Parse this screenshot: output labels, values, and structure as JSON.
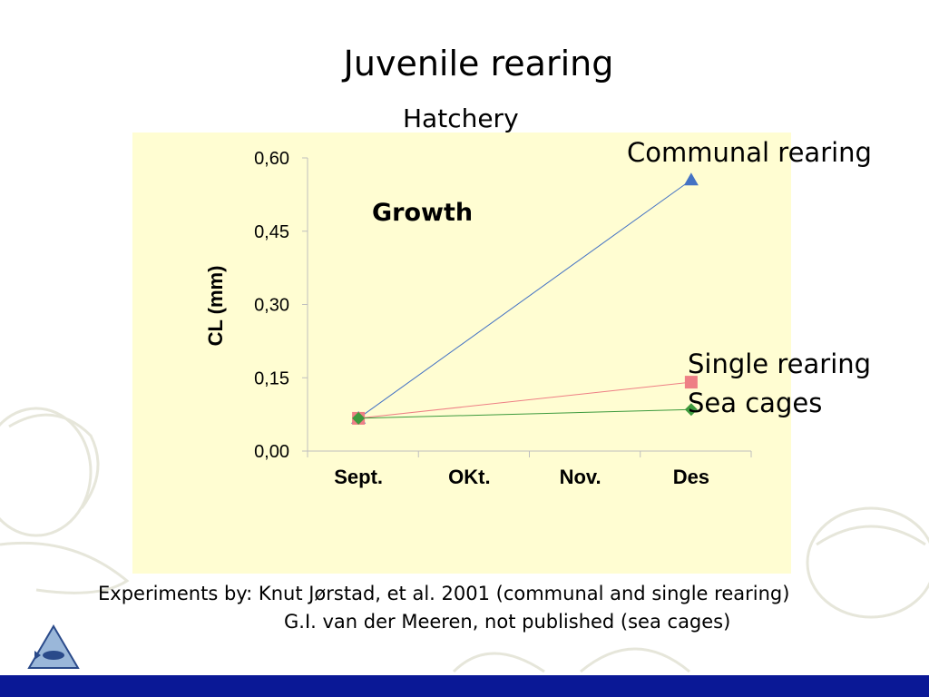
{
  "slide": {
    "title": "Juvenile rearing",
    "subtitle": "Hatchery",
    "credit_line1": "Experiments by: Knut Jørstad, et al. 2001 (communal and single rearing)",
    "credit_line2": "G.I. van der Meeren, not published (sea cages)",
    "panel_color": "#fffdd2",
    "bar_color": "#0a1896"
  },
  "chart_data": {
    "type": "line",
    "title": "Growth",
    "ylabel": "CL (mm)",
    "xlabel": "",
    "categories": [
      "Sept.",
      "OKt.",
      "Nov.",
      "Des"
    ],
    "ylim": [
      0,
      0.6
    ],
    "yticks": [
      "0,00",
      "0,15",
      "0,30",
      "0,45",
      "0,60"
    ],
    "ytick_values": [
      0,
      0.15,
      0.3,
      0.45,
      0.6
    ],
    "grid": false,
    "series": [
      {
        "name": "Communal rearing",
        "color": "#4472c4",
        "marker": "triangle",
        "points": [
          [
            "Sept.",
            0.067
          ],
          [
            "Des",
            0.555
          ]
        ]
      },
      {
        "name": "Single rearing",
        "color": "#ee7f85",
        "marker": "square",
        "points": [
          [
            "Sept.",
            0.067
          ],
          [
            "Des",
            0.141
          ]
        ]
      },
      {
        "name": "Sea cages",
        "color": "#3d9a3d",
        "marker": "diamond",
        "points": [
          [
            "Sept.",
            0.067
          ],
          [
            "Des",
            0.085
          ]
        ]
      }
    ]
  }
}
